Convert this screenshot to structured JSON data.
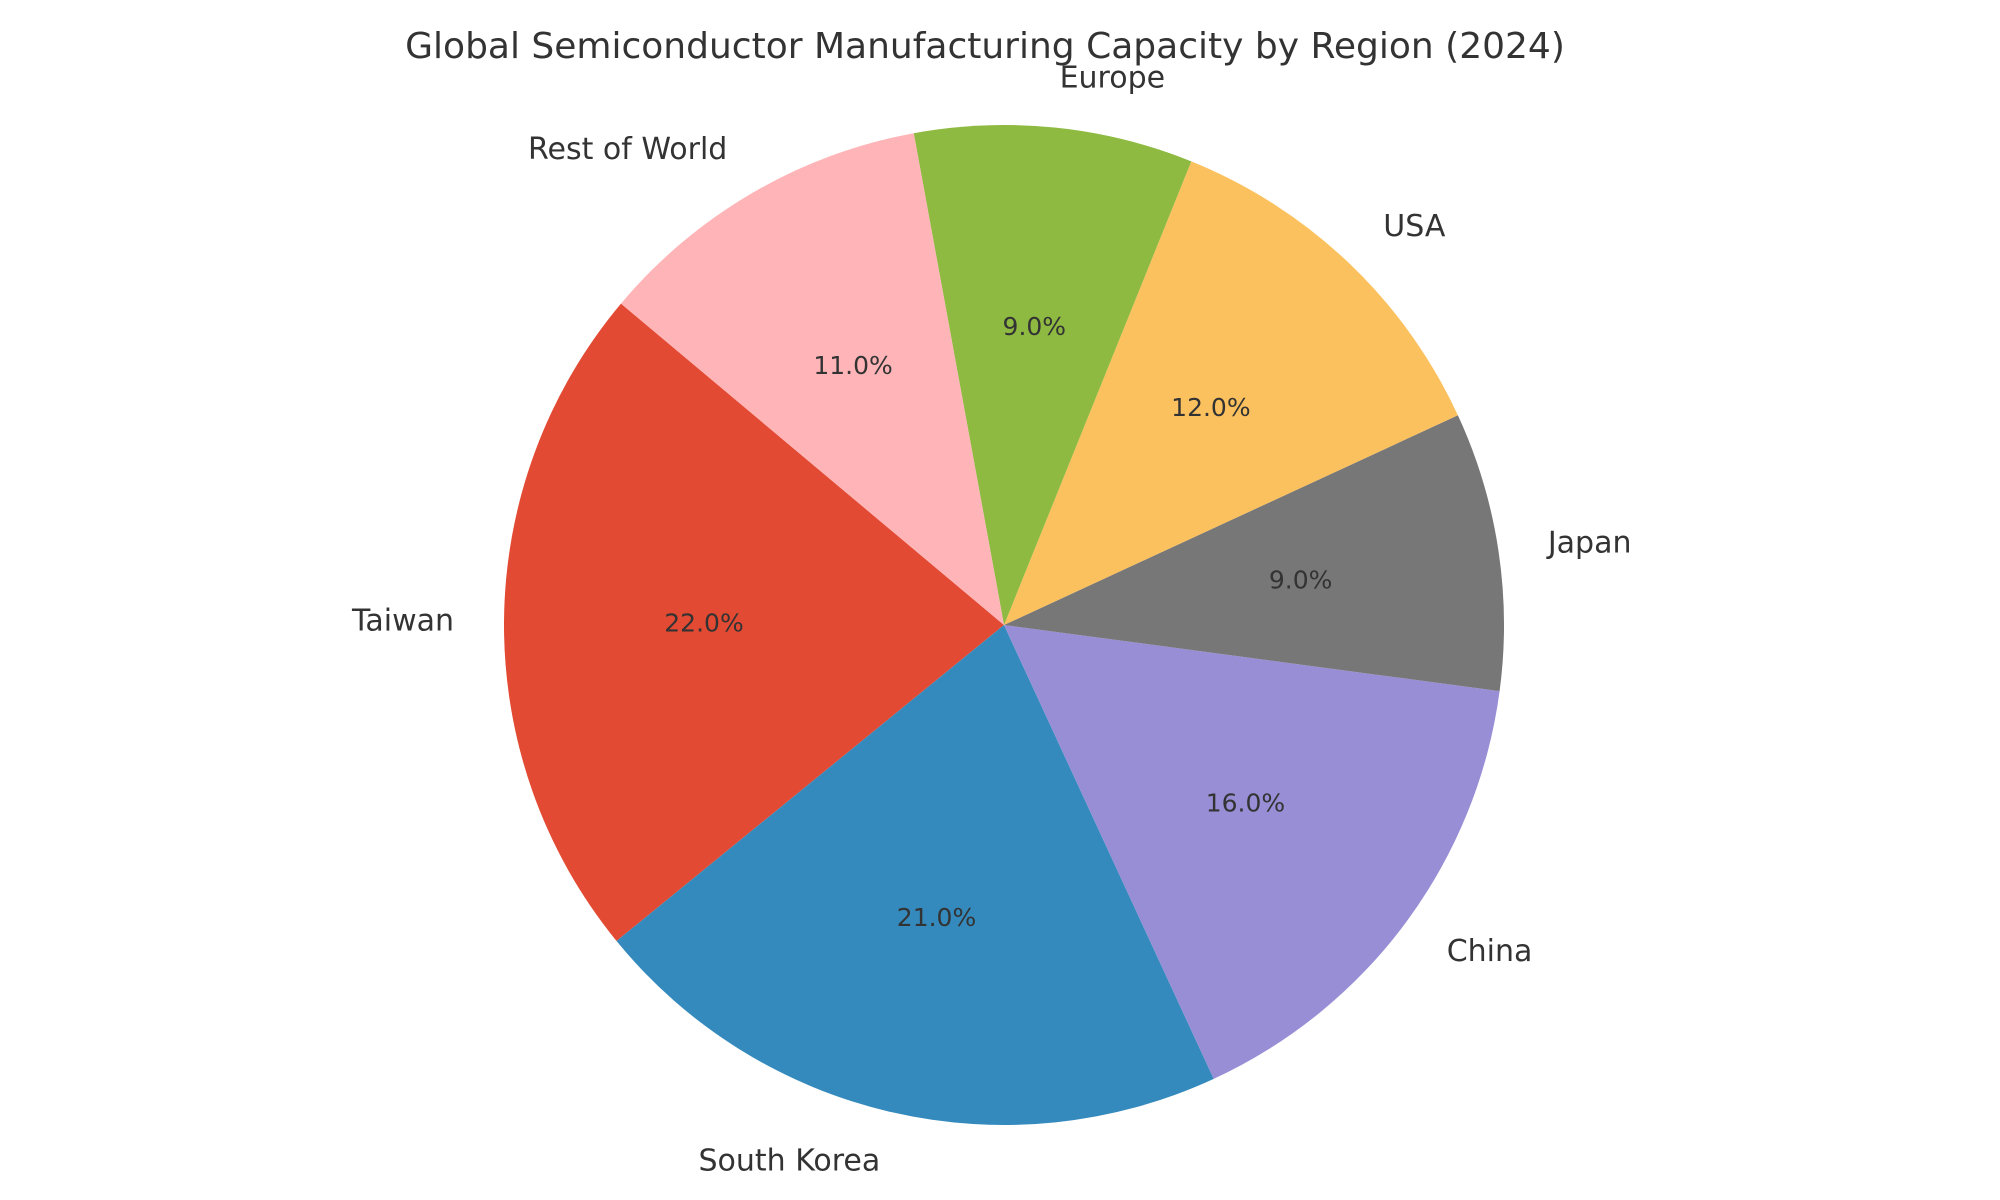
{
  "chart_data": {
    "type": "pie",
    "title": "Global Semiconductor Manufacturing Capacity by Region (2024)",
    "categories": [
      "Taiwan",
      "South Korea",
      "China",
      "Japan",
      "USA",
      "Europe",
      "Rest of World"
    ],
    "values": [
      22.0,
      21.0,
      16.0,
      9.0,
      12.0,
      9.0,
      11.0
    ],
    "value_labels": [
      "22.0%",
      "21.0%",
      "16.0%",
      "9.0%",
      "12.0%",
      "9.0%",
      "11.0%"
    ],
    "colors": [
      "#E24A33",
      "#348ABD",
      "#988ED5",
      "#777777",
      "#FBC15E",
      "#8EBA42",
      "#FFB5B8"
    ],
    "start_angle_deg": 140,
    "direction": "counterclockwise",
    "legend": "none",
    "grid": false
  }
}
